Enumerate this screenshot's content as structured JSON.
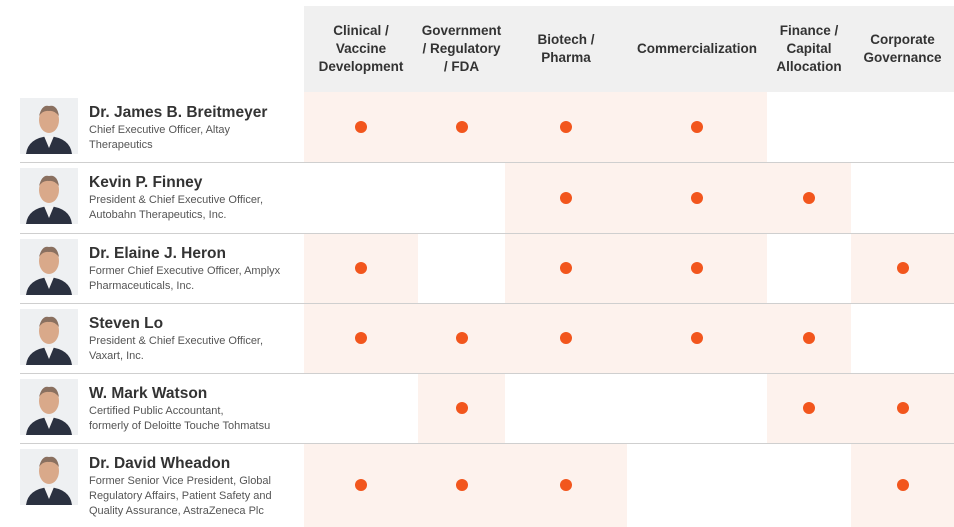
{
  "columns": [
    {
      "lines": [
        "Clinical /",
        "Vaccine",
        "Development"
      ]
    },
    {
      "lines": [
        "Government",
        "/ Regulatory",
        "/ FDA"
      ]
    },
    {
      "lines": [
        "Biotech /",
        "Pharma"
      ]
    },
    {
      "lines": [
        "Commercialization"
      ]
    },
    {
      "lines": [
        "Finance /",
        "Capital",
        "Allocation"
      ]
    },
    {
      "lines": [
        "Corporate",
        "Governance"
      ]
    }
  ],
  "rows": [
    {
      "name": "Dr. James B. Breitmeyer",
      "title_lines": [
        "Chief Executive Officer, Altay",
        "Therapeutics"
      ],
      "skills": [
        true,
        true,
        true,
        true,
        false,
        false
      ]
    },
    {
      "name": "Kevin P. Finney",
      "title_lines": [
        "President & Chief Executive Officer,",
        "Autobahn Therapeutics, Inc."
      ],
      "skills": [
        false,
        false,
        true,
        true,
        true,
        false
      ]
    },
    {
      "name": "Dr. Elaine J. Heron",
      "title_lines": [
        "Former Chief Executive Officer, Amplyx",
        "Pharmaceuticals, Inc."
      ],
      "skills": [
        true,
        false,
        true,
        true,
        false,
        true
      ]
    },
    {
      "name": "Steven Lo",
      "title_lines": [
        "President & Chief Executive Officer,",
        "Vaxart, Inc."
      ],
      "skills": [
        true,
        true,
        true,
        true,
        true,
        false
      ]
    },
    {
      "name": "W. Mark Watson",
      "title_lines": [
        "Certified Public Accountant,",
        "formerly of Deloitte Touche Tohmatsu"
      ],
      "skills": [
        false,
        true,
        false,
        false,
        true,
        true
      ]
    },
    {
      "name": "Dr. David Wheadon",
      "title_lines": [
        "Former Senior Vice President, Global",
        "Regulatory Affairs, Patient Safety and",
        "Quality Assurance, AstraZeneca Plc"
      ],
      "skills": [
        true,
        true,
        true,
        false,
        false,
        true
      ]
    }
  ]
}
